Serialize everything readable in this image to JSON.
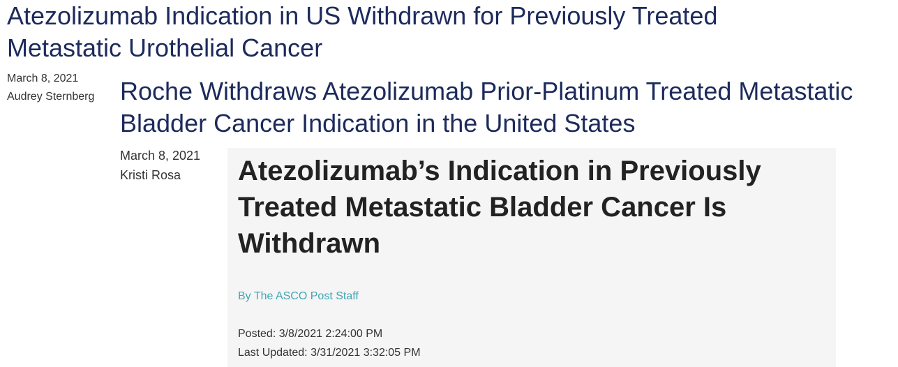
{
  "articles": [
    {
      "title": "Atezolizumab Indication in US Withdrawn for Previously Treated Metastatic Urothelial Cancer",
      "date": "March 8, 2021",
      "author": "Audrey Sternberg"
    },
    {
      "title": "Roche Withdraws Atezolizumab Prior-Platinum Treated Metastatic Bladder Cancer Indication in the United States",
      "date": "March 8, 2021",
      "author": "Kristi Rosa"
    }
  ],
  "featured": {
    "title": "Atezolizumab’s Indication in Previously Treated Metastatic Bladder Cancer Is Withdrawn",
    "byline": "By The ASCO Post Staff",
    "posted": "Posted: 3/8/2021 2:24:00 PM",
    "last_updated": "Last Updated: 3/31/2021 3:32:05 PM"
  },
  "colors": {
    "headline_link": "#1c2a5c",
    "byline_link": "#3fa7b5",
    "panel_background": "#f5f5f5"
  }
}
